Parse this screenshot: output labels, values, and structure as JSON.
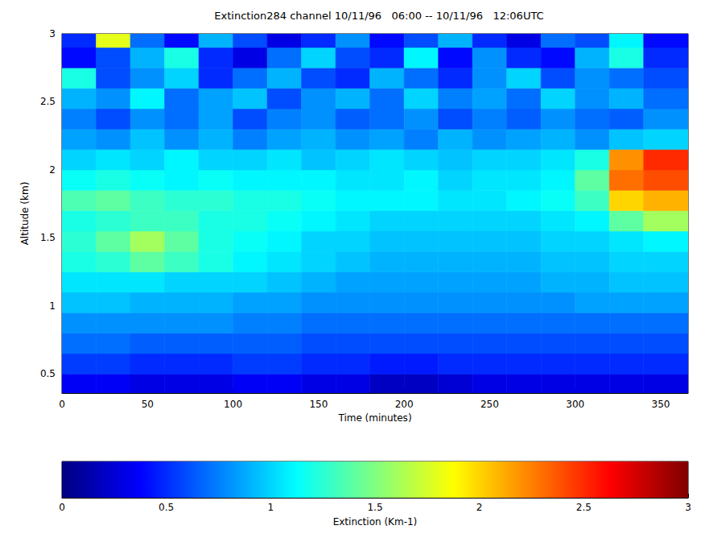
{
  "chart_data": {
    "type": "heatmap",
    "title": "Extinction284 channel 10/11/96   06:00 -- 10/11/96   12:06UTC",
    "x_label": "Time (minutes)",
    "y_label": "Altitude (km)",
    "xlim": [
      0,
      366
    ],
    "xticks": [
      0,
      50,
      100,
      150,
      200,
      250,
      300,
      350
    ],
    "ylim": [
      0.36,
      3
    ],
    "yticks": [
      0.5,
      1,
      1.5,
      2,
      2.5,
      3
    ],
    "grid": false,
    "x_bins": [
      0,
      20,
      40,
      60,
      80,
      100,
      120,
      140,
      160,
      180,
      200,
      220,
      240,
      260,
      280,
      300,
      320,
      340,
      366
    ],
    "y_bins": [
      0.36,
      0.5,
      0.65,
      0.8,
      0.95,
      1.1,
      1.25,
      1.4,
      1.55,
      1.7,
      1.85,
      2.0,
      2.15,
      2.3,
      2.45,
      2.6,
      2.75,
      2.9,
      3.0
    ],
    "values": [
      [
        0.35,
        0.35,
        0.3,
        0.3,
        0.3,
        0.35,
        0.35,
        0.3,
        0.3,
        0.2,
        0.2,
        0.25,
        0.3,
        0.3,
        0.3,
        0.3,
        0.3,
        0.3
      ],
      [
        0.55,
        0.55,
        0.5,
        0.5,
        0.5,
        0.55,
        0.55,
        0.5,
        0.5,
        0.45,
        0.45,
        0.5,
        0.5,
        0.5,
        0.5,
        0.5,
        0.5,
        0.5
      ],
      [
        0.7,
        0.7,
        0.65,
        0.65,
        0.65,
        0.65,
        0.65,
        0.6,
        0.6,
        0.6,
        0.6,
        0.6,
        0.6,
        0.6,
        0.6,
        0.6,
        0.6,
        0.6
      ],
      [
        0.8,
        0.8,
        0.8,
        0.8,
        0.8,
        0.75,
        0.75,
        0.7,
        0.7,
        0.7,
        0.7,
        0.7,
        0.7,
        0.7,
        0.7,
        0.7,
        0.7,
        0.7
      ],
      [
        0.95,
        0.95,
        0.9,
        0.9,
        0.9,
        0.85,
        0.85,
        0.8,
        0.8,
        0.8,
        0.8,
        0.8,
        0.8,
        0.8,
        0.8,
        0.85,
        0.85,
        0.85
      ],
      [
        1.05,
        1.05,
        1.05,
        1.0,
        1.0,
        1.0,
        0.95,
        0.9,
        0.85,
        0.85,
        0.85,
        0.85,
        0.85,
        0.85,
        0.9,
        0.9,
        0.95,
        0.95
      ],
      [
        1.2,
        1.25,
        1.4,
        1.3,
        1.2,
        1.1,
        1.05,
        1.0,
        0.95,
        0.9,
        0.9,
        0.9,
        0.9,
        0.9,
        0.95,
        0.95,
        1.0,
        1.0
      ],
      [
        1.25,
        1.4,
        1.6,
        1.4,
        1.2,
        1.15,
        1.1,
        1.0,
        1.0,
        0.95,
        0.95,
        0.95,
        0.95,
        0.95,
        1.0,
        1.0,
        1.05,
        1.1
      ],
      [
        1.2,
        1.25,
        1.3,
        1.3,
        1.2,
        1.2,
        1.15,
        1.1,
        1.05,
        1.0,
        1.0,
        1.0,
        1.0,
        1.0,
        1.05,
        1.1,
        1.4,
        1.6
      ],
      [
        1.35,
        1.4,
        1.3,
        1.25,
        1.25,
        1.2,
        1.2,
        1.15,
        1.1,
        1.1,
        1.1,
        1.05,
        1.05,
        1.1,
        1.15,
        1.3,
        2.0,
        2.1
      ],
      [
        1.15,
        1.2,
        1.15,
        1.1,
        1.15,
        1.1,
        1.1,
        1.1,
        1.05,
        1.05,
        1.1,
        1.0,
        1.05,
        1.05,
        1.1,
        1.4,
        2.3,
        2.4
      ],
      [
        1.0,
        1.05,
        1.0,
        1.1,
        1.0,
        1.0,
        1.05,
        0.95,
        1.0,
        1.05,
        1.0,
        0.95,
        1.0,
        1.0,
        1.05,
        1.2,
        2.2,
        2.5
      ],
      [
        0.85,
        0.8,
        0.95,
        0.8,
        0.9,
        0.75,
        0.85,
        0.9,
        0.8,
        0.85,
        0.75,
        0.9,
        0.8,
        0.85,
        0.9,
        0.8,
        0.95,
        1.0
      ],
      [
        0.75,
        0.6,
        0.8,
        0.7,
        0.85,
        0.6,
        0.75,
        0.8,
        0.65,
        0.7,
        0.8,
        0.6,
        0.75,
        0.65,
        0.8,
        0.7,
        0.65,
        0.8
      ],
      [
        0.9,
        0.8,
        1.1,
        0.7,
        0.85,
        0.95,
        0.6,
        0.8,
        0.9,
        0.7,
        1.0,
        0.75,
        0.85,
        0.7,
        1.0,
        0.8,
        0.9,
        0.7
      ],
      [
        1.2,
        0.6,
        0.8,
        1.0,
        0.5,
        0.7,
        0.9,
        0.6,
        0.5,
        0.9,
        0.7,
        0.5,
        0.8,
        1.0,
        0.6,
        0.8,
        0.7,
        0.6
      ],
      [
        0.4,
        0.6,
        0.9,
        1.2,
        0.5,
        0.3,
        0.7,
        1.0,
        0.6,
        0.5,
        1.1,
        0.4,
        0.8,
        0.5,
        0.4,
        0.9,
        1.2,
        0.5
      ],
      [
        0.5,
        1.8,
        0.7,
        0.4,
        0.9,
        0.6,
        0.3,
        0.5,
        0.8,
        0.4,
        0.6,
        0.9,
        0.5,
        0.3,
        0.7,
        0.6,
        1.1,
        0.4
      ]
    ],
    "colorbar": {
      "label": "Extinction (Km-1)",
      "range": [
        0,
        3
      ],
      "ticks": [
        0,
        0.5,
        1,
        1.5,
        2,
        2.5,
        3
      ]
    }
  }
}
